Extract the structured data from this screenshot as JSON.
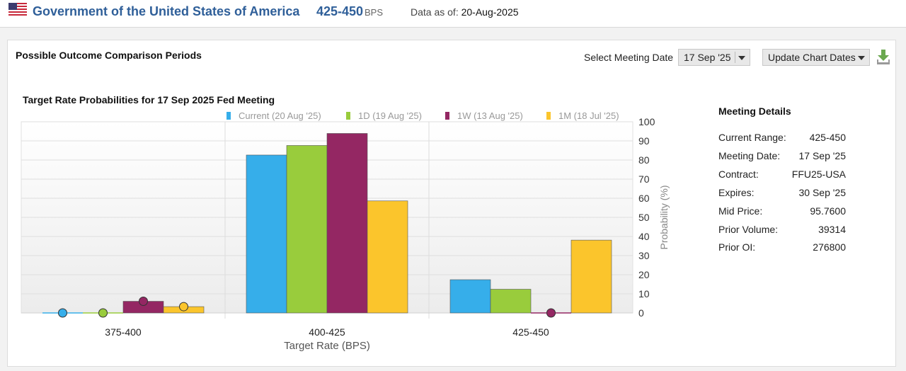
{
  "header": {
    "title": "Government of the United States of America",
    "range": "425-450",
    "range_unit": "BPS",
    "as_of_label": "Data as of:",
    "as_of_date": "20-Aug-2025"
  },
  "panel": {
    "title": "Possible Outcome Comparison Periods",
    "meeting_label": "Select Meeting Date",
    "meeting_value": "17 Sep '25",
    "update_label": "Update Chart Dates"
  },
  "chart_data": {
    "type": "bar",
    "title": "Target Rate Probabilities for 17 Sep 2025 Fed Meeting",
    "xlabel": "Target Rate (BPS)",
    "ylabel": "Probability (%)",
    "ylim": [
      0,
      100
    ],
    "yticks": [
      "0",
      "10",
      "20",
      "30",
      "40",
      "50",
      "60",
      "70",
      "80",
      "90",
      "100"
    ],
    "categories": [
      "375-400",
      "400-425",
      "425-450"
    ],
    "series": [
      {
        "name": "Current (20 Aug '25)",
        "color": "#36aeea",
        "values": [
          0,
          82.6,
          17.4
        ]
      },
      {
        "name": "1D (19 Aug '25)",
        "color": "#99cc3c",
        "values": [
          0,
          87.6,
          12.4
        ]
      },
      {
        "name": "1W (13 Aug '25)",
        "color": "#942763",
        "values": [
          6.1,
          93.9,
          0
        ]
      },
      {
        "name": "1M (18 Jul '25)",
        "color": "#fbc52c",
        "values": [
          3.3,
          58.6,
          38.1
        ]
      }
    ],
    "grid": true,
    "legend": "top"
  },
  "details": {
    "title": "Meeting Details",
    "rows": [
      {
        "label": "Current Range:",
        "value": "425-450"
      },
      {
        "label": "Meeting Date:",
        "value": "17 Sep '25"
      },
      {
        "label": "Contract:",
        "value": "FFU25-USA"
      },
      {
        "label": "Expires:",
        "value": "30 Sep '25"
      },
      {
        "label": "Mid Price:",
        "value": "95.7600"
      },
      {
        "label": "Prior Volume:",
        "value": "39314"
      },
      {
        "label": "Prior OI:",
        "value": "276800"
      }
    ]
  },
  "icons": {
    "flag": "us-flag-icon",
    "download": "download-icon",
    "caret": "chevron-down-icon"
  }
}
